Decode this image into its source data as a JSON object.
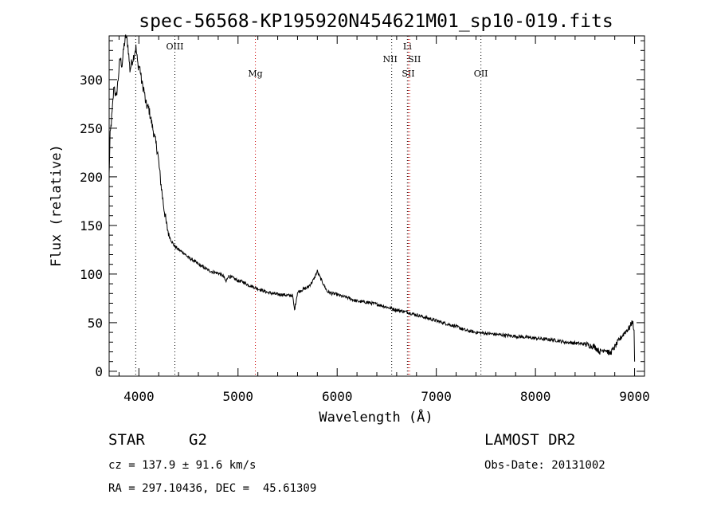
{
  "chart_data": {
    "type": "line",
    "title": "spec-56568-KP195920N454621M01_sp10-019.fits",
    "xlabel": "Wavelength (Å)",
    "ylabel": "Flux (relative)",
    "xlim": [
      3700,
      9100
    ],
    "ylim": [
      -5,
      345
    ],
    "x_ticks": [
      4000,
      5000,
      6000,
      7000,
      8000,
      9000
    ],
    "x_tick_labels": [
      "4000",
      "5000",
      "6000",
      "7000",
      "8000",
      "9000"
    ],
    "y_ticks": [
      0,
      50,
      100,
      150,
      200,
      250,
      300
    ],
    "y_tick_labels": [
      "0",
      "50",
      "100",
      "150",
      "200",
      "250",
      "300"
    ],
    "grid": false,
    "series": [
      {
        "x": [
          3700,
          3710,
          3730,
          3750,
          3770,
          3790,
          3810,
          3830,
          3850,
          3870,
          3890,
          3910,
          3930,
          3950,
          3970,
          3990,
          4010,
          4030,
          4050,
          4070,
          4100,
          4130,
          4160,
          4190,
          4220,
          4250,
          4280,
          4310,
          4350,
          4400,
          4450,
          4500,
          4550,
          4600,
          4650,
          4700,
          4750,
          4800,
          4850,
          4880,
          4900,
          4950,
          5000,
          5050,
          5100,
          5150,
          5200,
          5250,
          5300,
          5350,
          5400,
          5450,
          5500,
          5550,
          5570,
          5600,
          5650,
          5700,
          5750,
          5780,
          5800,
          5820,
          5850,
          5900,
          5950,
          6000,
          6050,
          6100,
          6150,
          6200,
          6300,
          6400,
          6500,
          6600,
          6700,
          6800,
          6900,
          7000,
          7100,
          7200,
          7300,
          7400,
          7500,
          7600,
          7700,
          7800,
          7900,
          8000,
          8100,
          8200,
          8300,
          8400,
          8500,
          8600,
          8650,
          8700,
          8750,
          8800,
          8850,
          8900,
          8950,
          8980,
          8995,
          9000
        ],
        "y": [
          202,
          242,
          265,
          295,
          280,
          300,
          322,
          315,
          335,
          345,
          335,
          310,
          318,
          325,
          333,
          315,
          312,
          296,
          290,
          275,
          270,
          255,
          240,
          225,
          195,
          170,
          150,
          138,
          130,
          125,
          122,
          117,
          114,
          110,
          107,
          104,
          102,
          101,
          98,
          92,
          98,
          96,
          93,
          92,
          89,
          87,
          85,
          83,
          81,
          80,
          79,
          79,
          78,
          78,
          63,
          81,
          84,
          86,
          92,
          98,
          103,
          98,
          92,
          82,
          80,
          79,
          77,
          76,
          74,
          72,
          71,
          69,
          66,
          63,
          61,
          58,
          55,
          52,
          49,
          46,
          42,
          40,
          39,
          38,
          37,
          36,
          35,
          34,
          33,
          32,
          30,
          29,
          28,
          25,
          20,
          23,
          18,
          25,
          33,
          40,
          45,
          52,
          40,
          10
        ]
      }
    ],
    "reference_lines": [
      {
        "x": 3968,
        "color": "#000000",
        "label": ""
      },
      {
        "x": 4363,
        "color": "#000000",
        "label": "OIII"
      },
      {
        "x": 5175,
        "color": "#cc0000",
        "label": "Mg"
      },
      {
        "x": 6550,
        "color": "#000000",
        "label": "NII"
      },
      {
        "x": 6708,
        "color": "#000000",
        "label": "Li"
      },
      {
        "x": 6717,
        "color": "#cc0000",
        "label": "SII"
      },
      {
        "x": 6731,
        "color": "#cc0000",
        "label": "SII"
      },
      {
        "x": 7450,
        "color": "#000000",
        "label": "OII"
      }
    ]
  },
  "info": {
    "class_label": "STAR",
    "subclass": "G2",
    "survey": "LAMOST DR2",
    "cz": "cz = 137.9 ± 91.6 km/s",
    "obs_date": "Obs-Date: 20131002",
    "coords": "RA = 297.10436, DEC =  45.61309"
  }
}
